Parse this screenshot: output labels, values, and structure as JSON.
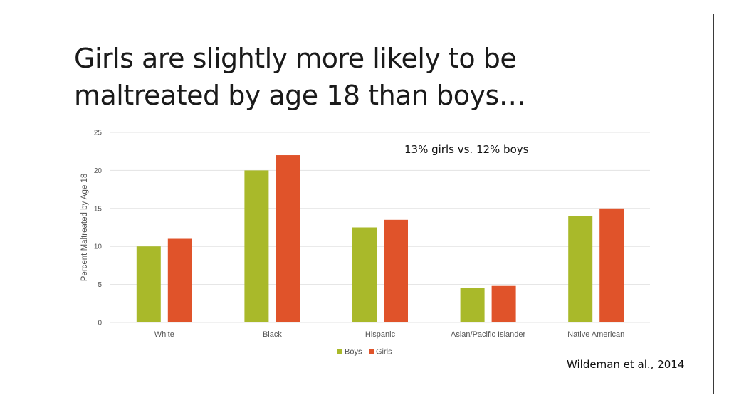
{
  "slide": {
    "title": "Girls are slightly more likely to be maltreated by age 18 than boys…",
    "annotation": "13% girls vs. 12% boys",
    "citation": "Wildeman et al., 2014"
  },
  "colors": {
    "boys": "#a9b92a",
    "girls": "#e0532a",
    "grid": "#e3e3e3",
    "text": "#555555"
  },
  "chart_data": {
    "type": "bar",
    "title": "",
    "xlabel": "",
    "ylabel": "Percent Maltreated by Age 18",
    "ylim": [
      0,
      25
    ],
    "yticks": [
      0,
      5,
      10,
      15,
      20,
      25
    ],
    "grid": true,
    "legend_position": "bottom",
    "categories": [
      "White",
      "Black",
      "Hispanic",
      "Asian/Pacific Islander",
      "Native American"
    ],
    "series": [
      {
        "name": "Boys",
        "color": "#a9b92a",
        "values": [
          10,
          20,
          12.5,
          4.5,
          14
        ]
      },
      {
        "name": "Girls",
        "color": "#e0532a",
        "values": [
          11,
          22,
          13.5,
          4.8,
          15
        ]
      }
    ]
  }
}
